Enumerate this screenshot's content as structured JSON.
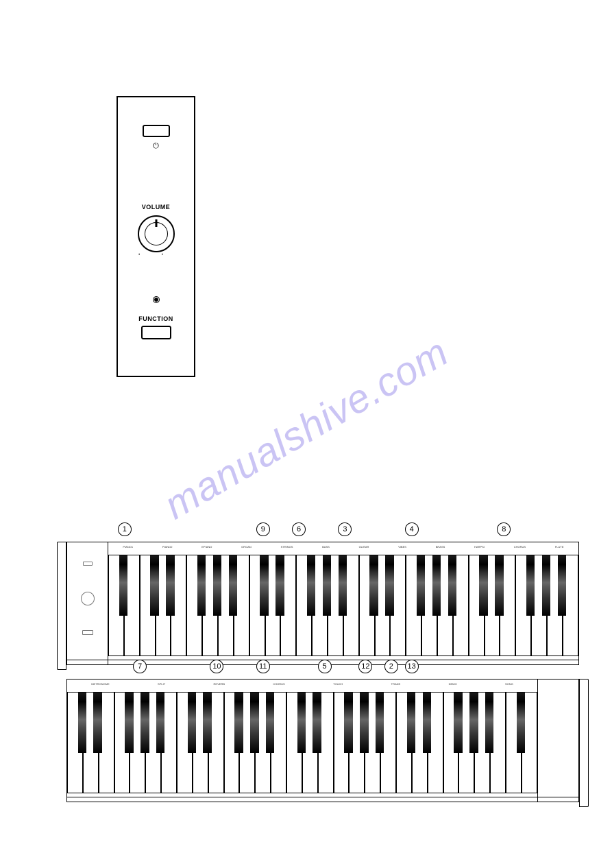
{
  "watermark": "manualshive.com",
  "control_panel": {
    "power_icon": "⏻",
    "volume_label": "VOLUME",
    "function_label": "FUNCTION"
  },
  "keyboard_top": {
    "white_key_count": 30,
    "black_key_pattern_start": 0,
    "circled_labels": [
      {
        "num": "1",
        "left_pct": 10
      },
      {
        "num": "9",
        "left_pct": 37
      },
      {
        "num": "6",
        "left_pct": 44
      },
      {
        "num": "3",
        "left_pct": 53
      },
      {
        "num": "4",
        "left_pct": 66
      },
      {
        "num": "8",
        "left_pct": 84
      }
    ],
    "tiny_text_groups": [
      "PIANO1",
      "PIANO2",
      "EPIANO",
      "ORGAN",
      "STRINGS",
      "BASS",
      "GUITAR",
      "VIBES",
      "BRASS",
      "HARPSI",
      "CHORUS",
      "FLUTE"
    ],
    "colors": {
      "key_white": "#ffffff",
      "key_black": "#1a1a1a",
      "border": "#000000"
    }
  },
  "keyboard_bottom": {
    "white_key_count": 30,
    "circled_labels": [
      {
        "num": "7",
        "left_pct": 13
      },
      {
        "num": "10",
        "left_pct": 28
      },
      {
        "num": "11",
        "left_pct": 37
      },
      {
        "num": "5",
        "left_pct": 49
      },
      {
        "num": "12",
        "left_pct": 57
      },
      {
        "num": "2",
        "left_pct": 62
      },
      {
        "num": "13",
        "left_pct": 66
      }
    ],
    "tiny_text_groups": [
      "METRONOME",
      "SPLIT",
      "REVERB",
      "CHORUS",
      "TOUCH",
      "TRANS",
      "DEMO",
      "SONG"
    ],
    "colors": {
      "key_white": "#ffffff",
      "key_black": "#1a1a1a",
      "border": "#000000"
    }
  },
  "styling": {
    "page_bg": "#ffffff",
    "watermark_color": "#8b7de8",
    "watermark_opacity": 0.45,
    "watermark_rotation_deg": -30,
    "watermark_fontsize": 58,
    "border_width": 1.5,
    "circled_diameter": 20,
    "circled_fontsize": 11
  }
}
